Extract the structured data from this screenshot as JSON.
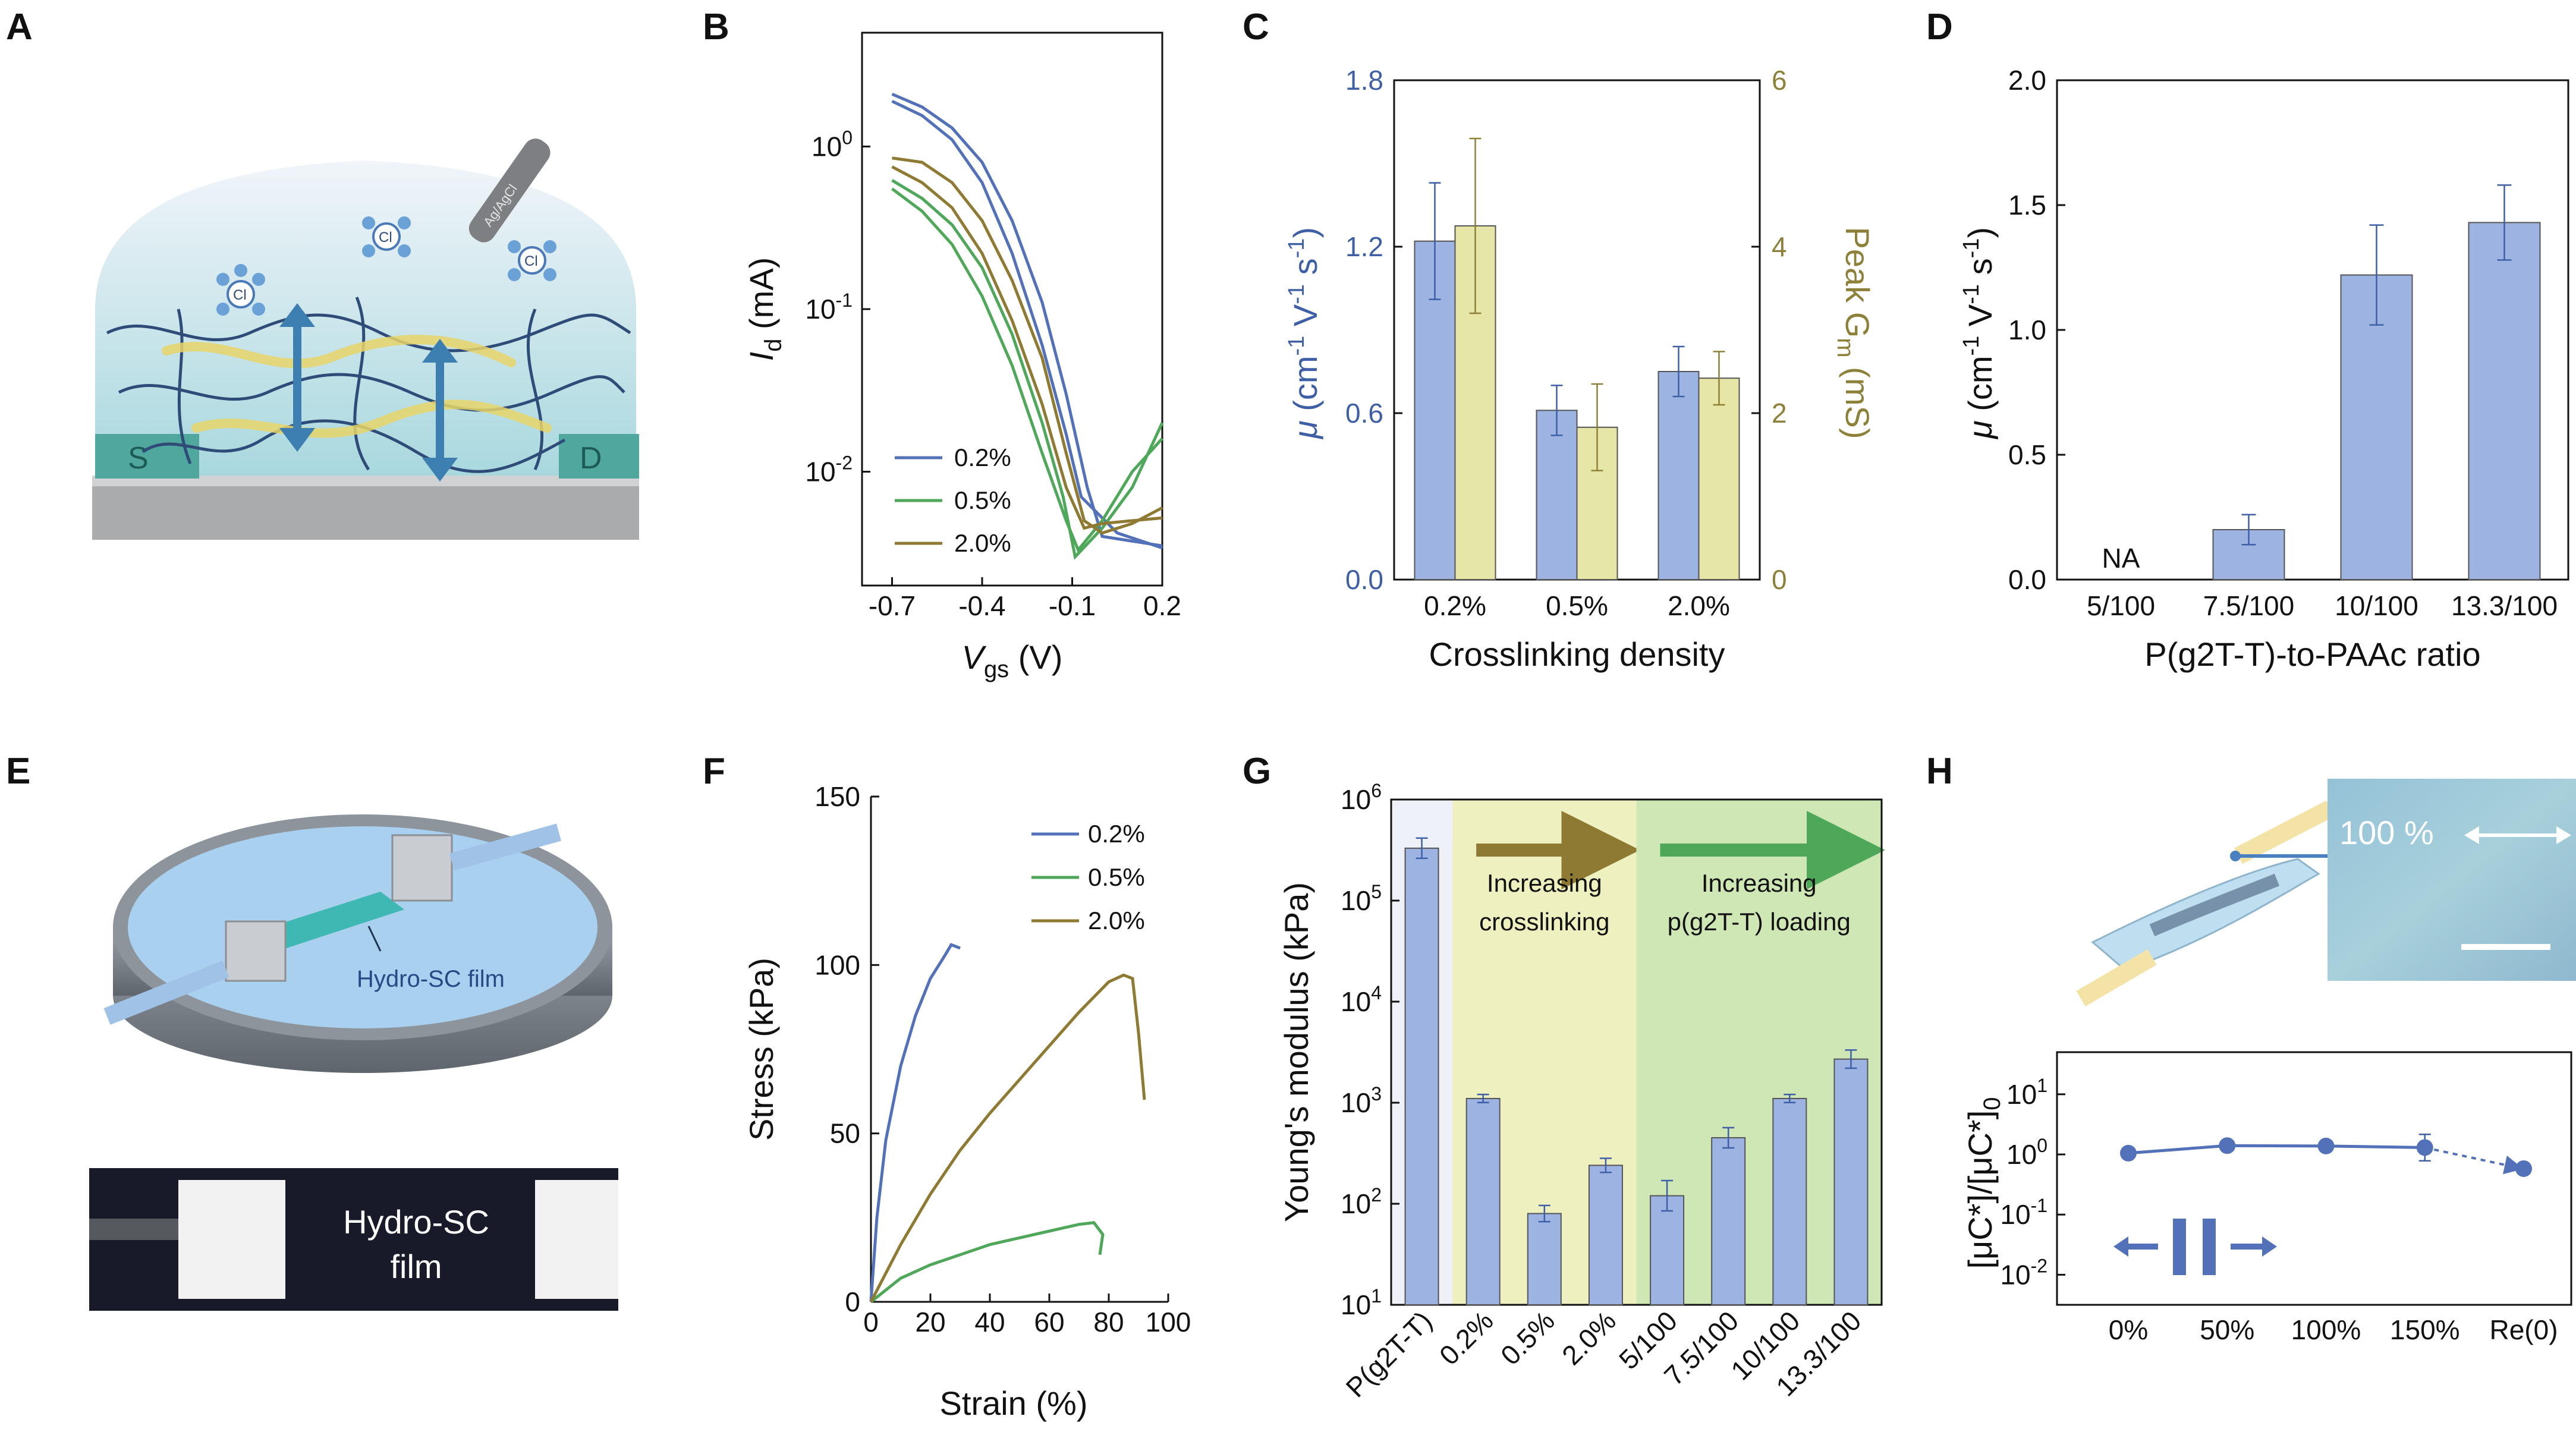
{
  "panel_letters": [
    "A",
    "B",
    "C",
    "D",
    "E",
    "F",
    "G",
    "H"
  ],
  "colors": {
    "blue": "#5271b9",
    "green": "#4fa85a",
    "olive": "#8e7a32",
    "bar_blue": "#9db4e3",
    "bar_yellow": "#e6e7a6",
    "axis_blue": "#3e5fa6",
    "axis_gold": "#8d8139",
    "band_yellow": "#eef0bf",
    "band_green": "#cfe6b5"
  },
  "illustrations": {
    "A": {
      "source": "S",
      "drain": "D",
      "electrode": "Ag/AgCl",
      "ion": "Cl"
    },
    "E": {
      "film_label": "Hydro-SC film",
      "photo_label_1": "Hydro-SC",
      "photo_label_2": "film"
    },
    "H": {
      "strain_label": "100 %"
    }
  },
  "chart_data": [
    {
      "id": "B",
      "type": "line",
      "xlabel": "V",
      "xlabel_sub": "gs",
      "xlabel_unit": " (V)",
      "ylabel": "I",
      "ylabel_sub": "d",
      "ylabel_unit": " (mA)",
      "xticks": [
        "-0.7",
        "-0.4",
        "-0.1",
        "0.2"
      ],
      "yticks": [
        "10^-2",
        "10^-1",
        "10^0"
      ],
      "xlim": [
        -0.8,
        0.2
      ],
      "ylim_log10": [
        -2.7,
        0.7
      ],
      "yscale": "log",
      "legend_position": "bottom-left",
      "series": [
        {
          "name": "0.2%",
          "color_key": "blue",
          "forward": [
            [
              -0.7,
              2.1
            ],
            [
              -0.6,
              1.75
            ],
            [
              -0.5,
              1.3
            ],
            [
              -0.4,
              0.8
            ],
            [
              -0.3,
              0.35
            ],
            [
              -0.2,
              0.11
            ],
            [
              -0.12,
              0.03
            ],
            [
              -0.05,
              0.008
            ],
            [
              0.0,
              0.004
            ],
            [
              0.2,
              0.0035
            ]
          ],
          "reverse": [
            [
              -0.7,
              1.9
            ],
            [
              -0.6,
              1.55
            ],
            [
              -0.5,
              1.1
            ],
            [
              -0.4,
              0.6
            ],
            [
              -0.3,
              0.22
            ],
            [
              -0.2,
              0.06
            ],
            [
              -0.12,
              0.017
            ],
            [
              -0.07,
              0.007
            ],
            [
              0.05,
              0.0042
            ],
            [
              0.2,
              0.0034
            ]
          ]
        },
        {
          "name": "0.5%",
          "color_key": "green",
          "forward": [
            [
              -0.7,
              0.62
            ],
            [
              -0.6,
              0.48
            ],
            [
              -0.5,
              0.33
            ],
            [
              -0.4,
              0.18
            ],
            [
              -0.3,
              0.07
            ],
            [
              -0.2,
              0.02
            ],
            [
              -0.13,
              0.007
            ],
            [
              -0.09,
              0.003
            ],
            [
              0.0,
              0.0045
            ],
            [
              0.1,
              0.008
            ],
            [
              0.2,
              0.02
            ]
          ],
          "reverse": [
            [
              -0.7,
              0.55
            ],
            [
              -0.6,
              0.4
            ],
            [
              -0.5,
              0.25
            ],
            [
              -0.4,
              0.12
            ],
            [
              -0.3,
              0.045
            ],
            [
              -0.2,
              0.013
            ],
            [
              -0.12,
              0.005
            ],
            [
              -0.08,
              0.0033
            ],
            [
              0.0,
              0.005
            ],
            [
              0.1,
              0.01
            ],
            [
              0.2,
              0.016
            ]
          ]
        },
        {
          "name": "2.0%",
          "color_key": "olive",
          "forward": [
            [
              -0.7,
              0.85
            ],
            [
              -0.6,
              0.8
            ],
            [
              -0.5,
              0.6
            ],
            [
              -0.4,
              0.35
            ],
            [
              -0.3,
              0.15
            ],
            [
              -0.2,
              0.05
            ],
            [
              -0.12,
              0.013
            ],
            [
              -0.06,
              0.005
            ],
            [
              0.0,
              0.0042
            ],
            [
              0.1,
              0.0048
            ],
            [
              0.2,
              0.006
            ]
          ],
          "reverse": [
            [
              -0.7,
              0.75
            ],
            [
              -0.6,
              0.6
            ],
            [
              -0.5,
              0.42
            ],
            [
              -0.4,
              0.22
            ],
            [
              -0.3,
              0.085
            ],
            [
              -0.2,
              0.026
            ],
            [
              -0.12,
              0.008
            ],
            [
              -0.06,
              0.0045
            ],
            [
              0.0,
              0.0048
            ],
            [
              0.1,
              0.005
            ],
            [
              0.2,
              0.0052
            ]
          ]
        }
      ]
    },
    {
      "id": "C",
      "type": "bar",
      "xlabel": "Crosslinking density",
      "ylabel_left_symbol": "μ",
      "ylabel_left_unit": " (cm",
      "ylabel_right": "Peak G",
      "ylabel_right_sub": "m",
      "ylabel_right_unit": " (mS)",
      "categories": [
        "0.2%",
        "0.5%",
        "2.0%"
      ],
      "ylim_left": [
        0,
        1.8
      ],
      "ylim_right": [
        0,
        6
      ],
      "yticks_left": [
        "0.0",
        "0.6",
        "1.2",
        "1.8"
      ],
      "yticks_right": [
        "0",
        "2",
        "4",
        "6"
      ],
      "series": [
        {
          "axis": "left",
          "color_key": "bar_blue",
          "values": [
            1.22,
            0.61,
            0.75
          ],
          "errors": [
            0.21,
            0.09,
            0.09
          ]
        },
        {
          "axis": "right",
          "color_key": "bar_yellow",
          "values": [
            4.25,
            1.83,
            2.42
          ],
          "errors": [
            1.05,
            0.52,
            0.32
          ]
        }
      ]
    },
    {
      "id": "D",
      "type": "bar",
      "xlabel": "P(g2T-T)-to-PAAc ratio",
      "ylabel_symbol": "μ",
      "ylabel_unit": " (cm",
      "categories": [
        "5/100",
        "7.5/100",
        "10/100",
        "13.3/100"
      ],
      "values": [
        null,
        0.2,
        1.22,
        1.43
      ],
      "errors": [
        null,
        0.06,
        0.2,
        0.15
      ],
      "annotation": "NA",
      "ylim": [
        0,
        2.0
      ],
      "yticks": [
        "0.0",
        "0.5",
        "1.0",
        "1.5",
        "2.0"
      ]
    },
    {
      "id": "F",
      "type": "line",
      "xlabel": "Strain (%)",
      "ylabel": "Stress (kPa)",
      "xlim": [
        0,
        100
      ],
      "ylim": [
        0,
        150
      ],
      "xticks": [
        "0",
        "20",
        "40",
        "60",
        "80",
        "100"
      ],
      "yticks": [
        "0",
        "50",
        "100",
        "150"
      ],
      "legend_position": "top-right",
      "series": [
        {
          "name": "0.2%",
          "color_key": "blue",
          "points": [
            [
              0,
              0
            ],
            [
              2,
              25
            ],
            [
              5,
              48
            ],
            [
              10,
              70
            ],
            [
              15,
              85
            ],
            [
              20,
              96
            ],
            [
              25,
              103
            ],
            [
              27,
              106
            ],
            [
              30,
              105
            ]
          ]
        },
        {
          "name": "0.5%",
          "color_key": "green",
          "points": [
            [
              0,
              0
            ],
            [
              10,
              7
            ],
            [
              20,
              11
            ],
            [
              30,
              14
            ],
            [
              40,
              17
            ],
            [
              50,
              19
            ],
            [
              60,
              21
            ],
            [
              70,
              23
            ],
            [
              75,
              23.5
            ],
            [
              78,
              20
            ],
            [
              77,
              14
            ]
          ]
        },
        {
          "name": "2.0%",
          "color_key": "olive",
          "points": [
            [
              0,
              0
            ],
            [
              10,
              17
            ],
            [
              20,
              32
            ],
            [
              30,
              45
            ],
            [
              40,
              56
            ],
            [
              50,
              66
            ],
            [
              60,
              76
            ],
            [
              70,
              86
            ],
            [
              80,
              95
            ],
            [
              85,
              97
            ],
            [
              88,
              96
            ],
            [
              90,
              80
            ],
            [
              92,
              60
            ]
          ]
        }
      ]
    },
    {
      "id": "G",
      "type": "bar",
      "ylabel": "Young's modulus (kPa)",
      "yscale": "log",
      "ylim_log10": [
        1,
        6
      ],
      "yticks": [
        "10^1",
        "10^2",
        "10^3",
        "10^4",
        "10^5",
        "10^6"
      ],
      "categories": [
        "P(g2T-T)",
        "0.2%",
        "0.5%",
        "2.0%",
        "5/100",
        "7.5/100",
        "10/100",
        "13.3/100"
      ],
      "values": [
        330000,
        1100,
        80,
        240,
        120,
        450,
        1100,
        2700
      ],
      "errors_log10": [
        0.1,
        0.04,
        0.08,
        0.07,
        0.15,
        0.1,
        0.04,
        0.09
      ],
      "bands": [
        {
          "text1": "Increasing",
          "text2": "crosslinking",
          "from_index": 1,
          "to_index": 3,
          "color_key": "band_yellow",
          "arrow_color_key": "olive"
        },
        {
          "text1": "Increasing",
          "text2": "p(g2T-T) loading",
          "from_index": 4,
          "to_index": 7,
          "color_key": "band_green",
          "arrow_color_key": "green"
        }
      ]
    },
    {
      "id": "H",
      "type": "scatter",
      "ylabel": "[μC*]/[μC*]",
      "ylabel_sub": "0",
      "yscale": "log",
      "ylim_log10": [
        -2.5,
        1.7
      ],
      "yticks": [
        "10^-2",
        "10^-1",
        "10^0",
        "10^1"
      ],
      "categories": [
        "0%",
        "50%",
        "100%",
        "150%",
        "Re(0)"
      ],
      "values": [
        1.05,
        1.4,
        1.38,
        1.3,
        0.58
      ],
      "errors_log10": [
        0,
        0.03,
        0.03,
        0.22,
        0.05
      ],
      "dashed_last_segment": true
    }
  ]
}
